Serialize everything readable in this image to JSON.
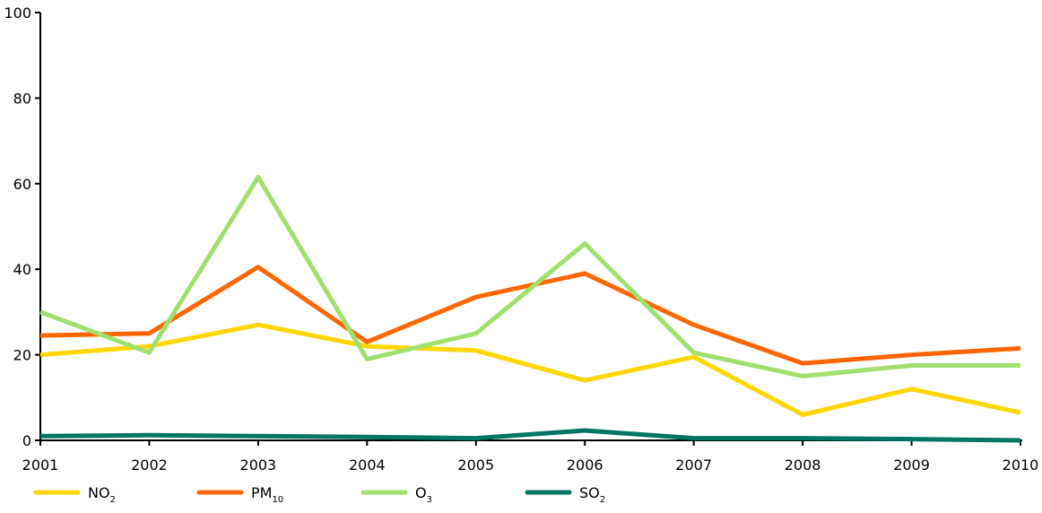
{
  "chart_data": {
    "type": "line",
    "x": [
      "2001",
      "2002",
      "2003",
      "2004",
      "2005",
      "2006",
      "2007",
      "2008",
      "2009",
      "2010"
    ],
    "ylim": [
      0,
      100
    ],
    "yticks": [
      "0",
      "20",
      "40",
      "60",
      "80",
      "100"
    ],
    "grid": false,
    "legend_position": "bottom",
    "series": [
      {
        "name": "NO2",
        "label_main": "NO",
        "label_sub": "2",
        "color": "#ffd700",
        "values": [
          20,
          22,
          27,
          22,
          21,
          14,
          19.5,
          6,
          12,
          6.5
        ]
      },
      {
        "name": "PM10",
        "label_main": "PM",
        "label_sub": "10",
        "color": "#ff6600",
        "values": [
          24.5,
          25,
          40.5,
          23,
          33.5,
          39,
          27,
          18,
          20,
          21.5
        ]
      },
      {
        "name": "O3",
        "label_main": "O",
        "label_sub": "3",
        "color": "#a0e06e",
        "values": [
          30,
          20.5,
          61.5,
          19,
          25,
          46,
          20.5,
          15,
          17.5,
          17.5
        ]
      },
      {
        "name": "SO2",
        "label_main": "SO",
        "label_sub": "2",
        "color": "#007560",
        "values": [
          1,
          1.2,
          1,
          0.8,
          0.5,
          2.3,
          0.5,
          0.5,
          0.3,
          0
        ]
      }
    ]
  }
}
